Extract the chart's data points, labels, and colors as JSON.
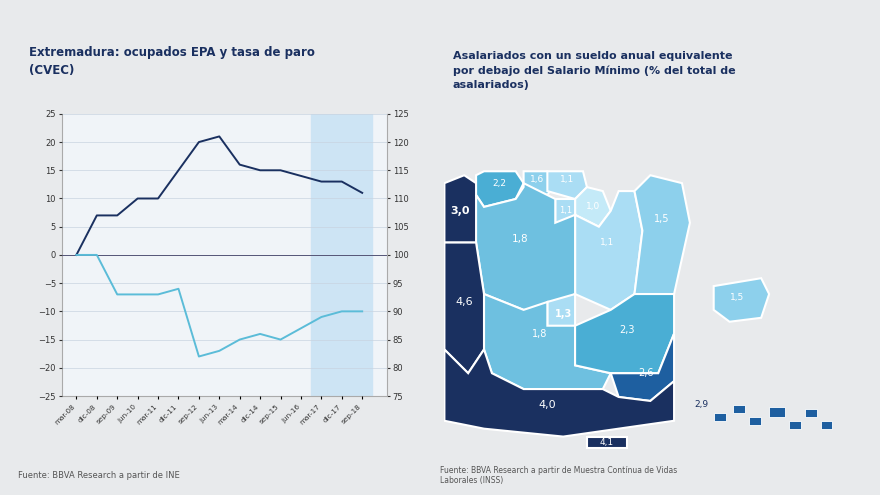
{
  "left_title": "Extremadura: ocupados EPA y tasa de paro\n(CVEC)",
  "left_source": "Fuente: BBVA Research a partir de INE",
  "right_title": "Asalariados con un sueldo anual equivalente\npor debajo del Salario Mínimo (% del total de\nasalariados)",
  "right_source": "Fuente: BBVA Research a partir de Muestra Contínua de Vidas\nLaborales (INSS)",
  "bg_color": "#e8eaec",
  "chart_bg": "#f0f4f8",
  "title_bg": "#c8d4e0",
  "line1_color": "#1a3060",
  "line2_color": "#5bbcd8",
  "forecast_color": "#cde4f4",
  "x_labels": [
    "mar-08",
    "dic-08",
    "sep-09",
    "jun-10",
    "mar-11",
    "dic-11",
    "sep-12",
    "jun-13",
    "mar-14",
    "dic-14",
    "sep-15",
    "jun-16",
    "mar-17",
    "dic-17",
    "sep-18"
  ],
  "series1": [
    0,
    7,
    7,
    10,
    10,
    15,
    20,
    21,
    16,
    15,
    15,
    14,
    13,
    13,
    11
  ],
  "series2": [
    100,
    100,
    93,
    93,
    93,
    94,
    82,
    83,
    85,
    86,
    85,
    87,
    89,
    90,
    90
  ],
  "forecast_idx": 12,
  "c_very_dark": "#1a3060",
  "c_dark": "#1e5fa0",
  "c_medium": "#4aaed4",
  "c_medium_light": "#6ec0e0",
  "c_light": "#8dd0ec",
  "c_very_light": "#aaddf4",
  "c_lightest": "#c4eaf8"
}
